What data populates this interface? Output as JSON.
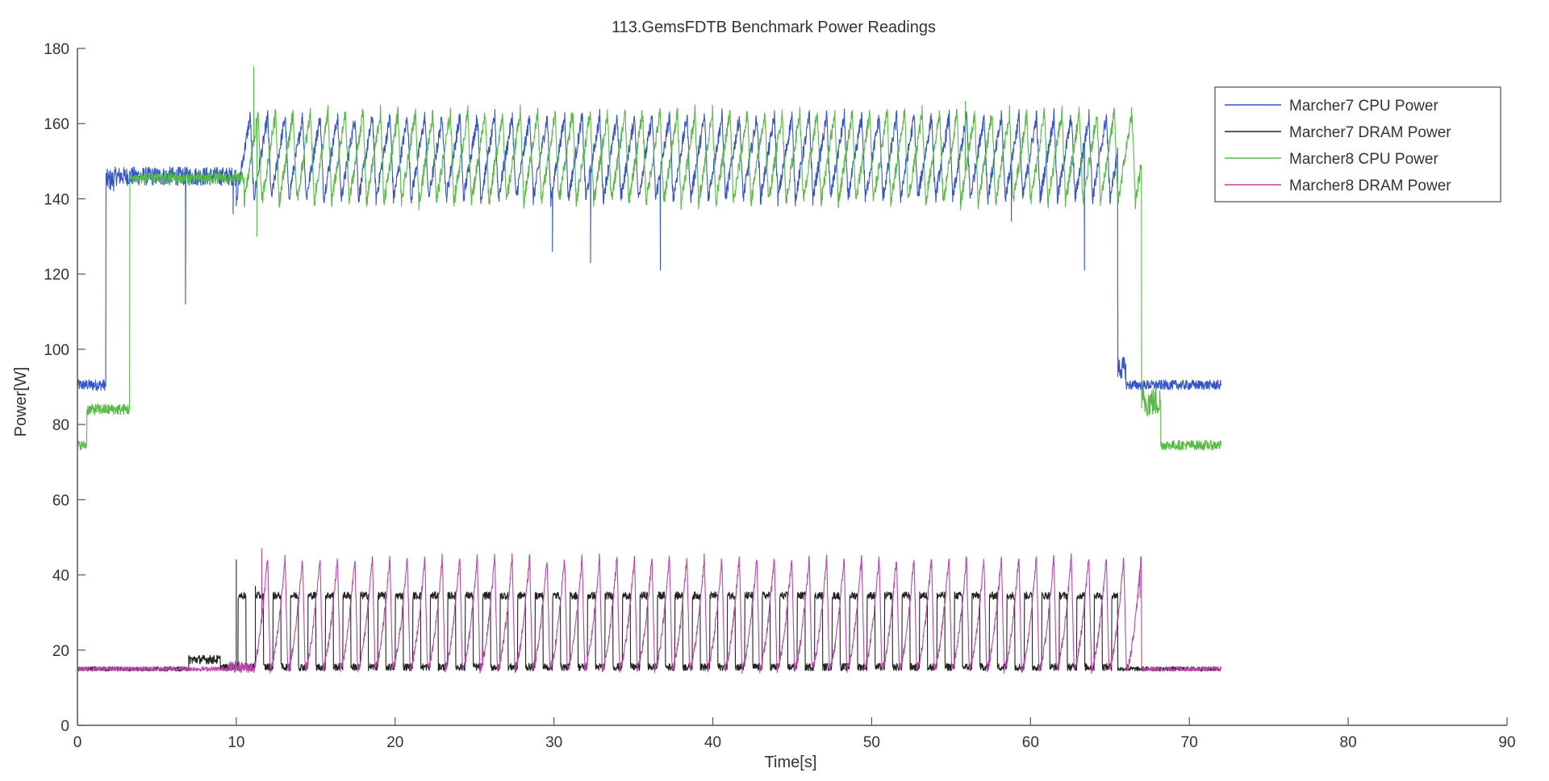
{
  "chart_data": {
    "type": "line",
    "title": "113.GemsFDTB Benchmark Power Readings",
    "xlabel": "Time[s]",
    "ylabel": "Power[W]",
    "xlim": [
      0,
      90
    ],
    "ylim": [
      0,
      180
    ],
    "xticks": [
      0,
      10,
      20,
      30,
      40,
      50,
      60,
      70,
      80,
      90
    ],
    "yticks": [
      0,
      20,
      40,
      60,
      80,
      100,
      120,
      140,
      160,
      180
    ],
    "grid": false,
    "legend": "top-right",
    "oscillation_period_s": 1.1,
    "series": [
      {
        "name": "Marcher7 CPU Power",
        "color": "#3355cc",
        "phases": [
          {
            "t0": 0,
            "t1": 1.8,
            "base": 90.5,
            "noise": 1.5
          },
          {
            "t0": 1.8,
            "t1": 2.3,
            "base": 145,
            "noise": 3
          },
          {
            "t0": 2.3,
            "t1": 10.0,
            "base": 146,
            "noise": 2.5
          },
          {
            "t0": 10.0,
            "t1": 65.5,
            "osc": [
              140,
              162
            ],
            "noise": 2
          },
          {
            "t0": 65.5,
            "t1": 66.0,
            "base": 95,
            "noise": 3
          },
          {
            "t0": 66.0,
            "t1": 72.0,
            "base": 90.5,
            "noise": 1.3
          }
        ],
        "spikes": [
          [
            6.8,
            112
          ],
          [
            29.9,
            126
          ],
          [
            32.3,
            123
          ],
          [
            36.7,
            121
          ],
          [
            63.4,
            121
          ],
          [
            9.8,
            136
          ],
          [
            58.8,
            134
          ]
        ]
      },
      {
        "name": "Marcher7 DRAM Power",
        "color": "#222222",
        "phases": [
          {
            "t0": 0,
            "t1": 7.0,
            "base": 15,
            "noise": 0.6
          },
          {
            "t0": 7.0,
            "t1": 9.0,
            "base": 17.5,
            "noise": 1.2
          },
          {
            "t0": 9.0,
            "t1": 10.0,
            "base": 15.5,
            "noise": 0.8
          },
          {
            "t0": 10.0,
            "t1": 65.5,
            "pulse": [
              15.5,
              34.5
            ],
            "noise": 1
          },
          {
            "t0": 65.5,
            "t1": 72.0,
            "base": 15,
            "noise": 0.6
          }
        ],
        "spikes": [
          [
            10.0,
            44
          ],
          [
            11.2,
            37
          ]
        ]
      },
      {
        "name": "Marcher8 CPU Power",
        "color": "#55bb44",
        "phases": [
          {
            "t0": 0,
            "t1": 0.6,
            "base": 74.5,
            "noise": 1.2
          },
          {
            "t0": 0.6,
            "t1": 3.3,
            "base": 84,
            "noise": 1.5
          },
          {
            "t0": 3.3,
            "t1": 10.5,
            "base": 145.5,
            "noise": 1.5
          },
          {
            "t0": 10.5,
            "t1": 67.0,
            "osc": [
              139,
              163
            ],
            "noise": 2
          },
          {
            "t0": 67.0,
            "t1": 68.2,
            "base": 86,
            "noise": 4
          },
          {
            "t0": 68.2,
            "t1": 72.0,
            "base": 74.5,
            "noise": 1.3
          }
        ],
        "spikes": [
          [
            11.1,
            175
          ],
          [
            11.3,
            130
          ],
          [
            55.9,
            166
          ]
        ]
      },
      {
        "name": "Marcher8 DRAM Power",
        "color": "#bb44aa",
        "phases": [
          {
            "t0": 0,
            "t1": 9.5,
            "base": 15,
            "noise": 0.6
          },
          {
            "t0": 9.5,
            "t1": 11.2,
            "base": 15.5,
            "noise": 1.5
          },
          {
            "t0": 11.2,
            "t1": 67.0,
            "saw": [
              15,
              45
            ],
            "noise": 1.2
          },
          {
            "t0": 67.0,
            "t1": 72.0,
            "base": 15,
            "noise": 0.6
          }
        ],
        "spikes": [
          [
            11.6,
            47
          ],
          [
            66.9,
            34
          ]
        ]
      }
    ]
  }
}
